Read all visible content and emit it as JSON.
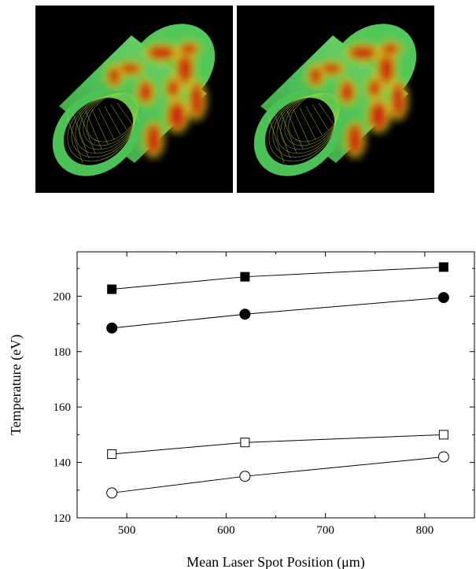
{
  "figure": {
    "panels": [
      {
        "name": "cylinder-render-left",
        "colors": {
          "background": "#000000",
          "base": "#4fc35a",
          "hot": "#cc2a10",
          "warm": "#d9d21c"
        }
      },
      {
        "name": "cylinder-render-right",
        "colors": {
          "background": "#000000",
          "base": "#4fc35a",
          "hot": "#cc2a10",
          "warm": "#d9d21c"
        }
      }
    ]
  },
  "chart_data": {
    "type": "scatter",
    "title": "",
    "xlabel": "Mean Laser Spot Position (μm)",
    "ylabel": "Temperature (eV)",
    "xlim": [
      450,
      850
    ],
    "ylim": [
      120,
      216
    ],
    "xticks": [
      500,
      600,
      700,
      800
    ],
    "yticks": [
      120,
      140,
      160,
      180,
      200
    ],
    "grid": false,
    "series": [
      {
        "marker": "square",
        "filled": true,
        "x": [
          485,
          619,
          819
        ],
        "y": [
          202.5,
          207,
          210.5
        ]
      },
      {
        "marker": "circle",
        "filled": true,
        "x": [
          485,
          619,
          819
        ],
        "y": [
          188.5,
          193.5,
          199.5
        ]
      },
      {
        "marker": "square",
        "filled": false,
        "x": [
          485,
          619,
          819
        ],
        "y": [
          143,
          147.2,
          150
        ]
      },
      {
        "marker": "circle",
        "filled": false,
        "x": [
          485,
          619,
          819
        ],
        "y": [
          129,
          135,
          142
        ]
      }
    ]
  }
}
